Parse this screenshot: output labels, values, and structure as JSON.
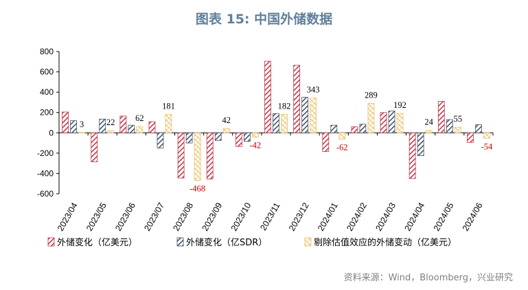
{
  "title": "图表 15: 中国外储数据",
  "source": "资料来源：Wind，Bloomberg，兴业研究",
  "chart_data": {
    "type": "bar",
    "title": "图表 15: 中国外储数据",
    "categories": [
      "2023/04",
      "2023/05",
      "2023/06",
      "2023/07",
      "2023/08",
      "2023/09",
      "2023/10",
      "2023/11",
      "2023/12",
      "2024/01",
      "2024/02",
      "2024/03",
      "2024/04",
      "2024/05",
      "2024/06"
    ],
    "ylim": [
      -600,
      800
    ],
    "yticks": [
      800,
      600,
      400,
      200,
      0,
      -200,
      -400,
      -600
    ],
    "series": [
      {
        "name": "外储变化（亿美元）",
        "color": "#c0394b",
        "values": [
          205,
          -285,
          165,
          110,
          -445,
          -455,
          -135,
          705,
          665,
          -185,
          60,
          200,
          -450,
          310,
          -95
        ]
      },
      {
        "name": "外储变化（亿SDR）",
        "color": "#44546a",
        "values": [
          120,
          135,
          75,
          -150,
          -100,
          -75,
          -85,
          190,
          350,
          75,
          85,
          215,
          -225,
          130,
          80
        ]
      },
      {
        "name": "剔除估值效应的外储变动（亿美元）",
        "color": "#ecc06a",
        "values": [
          3,
          22,
          62,
          181,
          -468,
          42,
          -42,
          182,
          343,
          -62,
          289,
          192,
          24,
          55,
          -54
        ]
      }
    ],
    "data_labels": [
      "3",
      "22",
      "62",
      "181",
      "-468",
      "42",
      "-42",
      "182",
      "343",
      "-62",
      "289",
      "192",
      "24",
      "55",
      "-54"
    ]
  }
}
